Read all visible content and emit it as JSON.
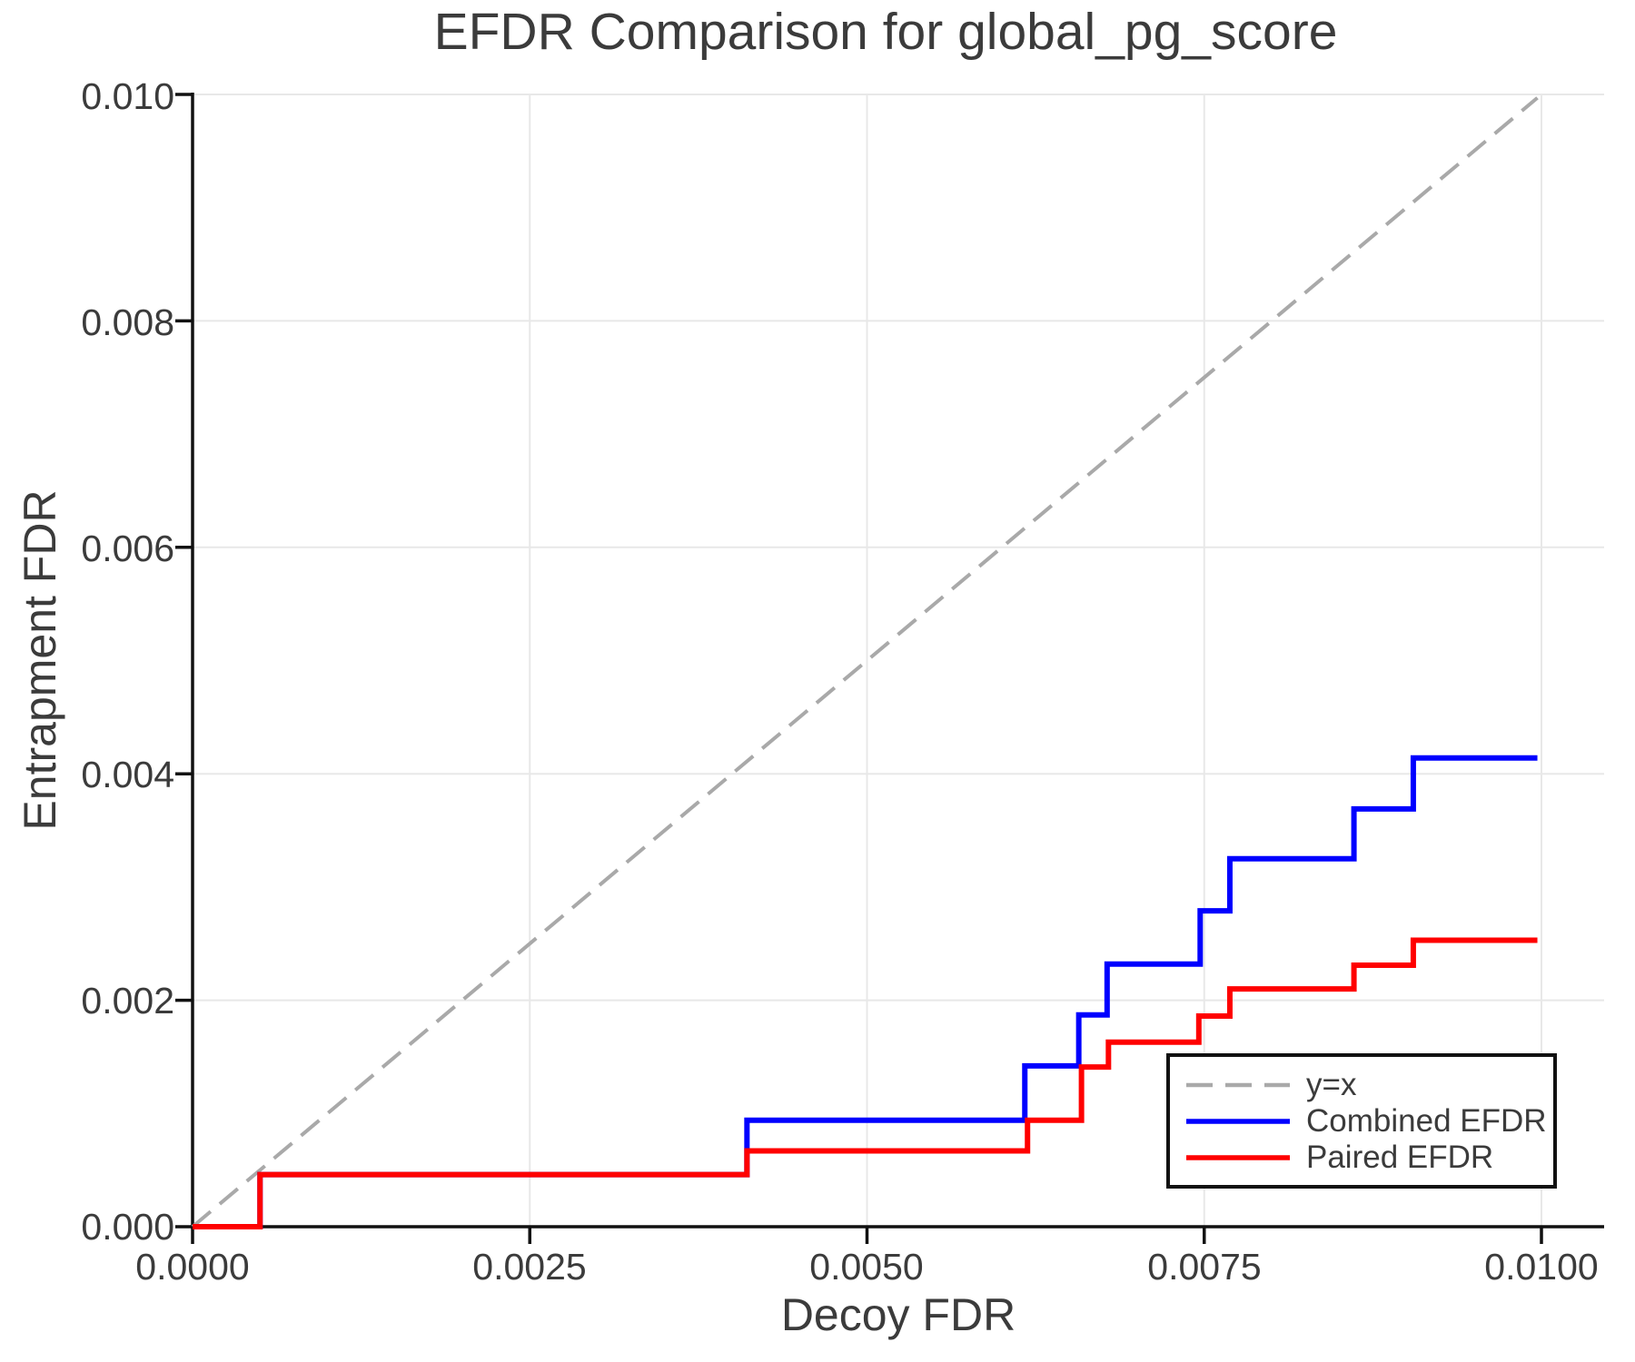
{
  "chart_data": {
    "type": "line",
    "title": "EFDR Comparison for global_pg_score",
    "xlabel": "Decoy FDR",
    "ylabel": "Entrapment FDR",
    "xlim": [
      0.0,
      0.01047
    ],
    "ylim": [
      0.0,
      0.01
    ],
    "grid": true,
    "grid_color": "#e8e8e8",
    "axis_color": "#111111",
    "text_color": "#3b3b3b",
    "legend_position": "lower right inside",
    "xticks": {
      "values": [
        0.0,
        0.0025,
        0.005,
        0.0075,
        0.01
      ],
      "labels": [
        "0.0000",
        "0.0025",
        "0.0050",
        "0.0075",
        "0.0100"
      ]
    },
    "yticks": {
      "values": [
        0.0,
        0.002,
        0.004,
        0.006,
        0.008,
        0.01
      ],
      "labels": [
        "0.000",
        "0.002",
        "0.004",
        "0.006",
        "0.008",
        "0.010"
      ]
    },
    "series": [
      {
        "name": "y=x",
        "style": "dashed",
        "color": "#a9a9a9",
        "points": [
          [
            0.0,
            0.0
          ],
          [
            0.00997,
            0.00997
          ]
        ]
      },
      {
        "name": "Combined EFDR",
        "style": "step-post",
        "color": "#0000ff",
        "points": [
          [
            0.0,
            0.0
          ],
          [
            0.0005,
            0.00046
          ],
          [
            0.00411,
            0.00094
          ],
          [
            0.00617,
            0.00142
          ],
          [
            0.00657,
            0.00187
          ],
          [
            0.00678,
            0.00232
          ],
          [
            0.00747,
            0.00279
          ],
          [
            0.00769,
            0.00325
          ],
          [
            0.00861,
            0.00369
          ],
          [
            0.00905,
            0.00414
          ],
          [
            0.00997,
            0.00414
          ]
        ]
      },
      {
        "name": "Paired EFDR",
        "style": "step-post",
        "color": "#ff0000",
        "points": [
          [
            0.0,
            0.0
          ],
          [
            0.0005,
            0.00046
          ],
          [
            0.00411,
            0.00067
          ],
          [
            0.00619,
            0.00094
          ],
          [
            0.00659,
            0.00141
          ],
          [
            0.00679,
            0.00163
          ],
          [
            0.00746,
            0.00186
          ],
          [
            0.00769,
            0.0021
          ],
          [
            0.00861,
            0.00231
          ],
          [
            0.00905,
            0.00253
          ],
          [
            0.00997,
            0.00253
          ]
        ]
      }
    ]
  }
}
